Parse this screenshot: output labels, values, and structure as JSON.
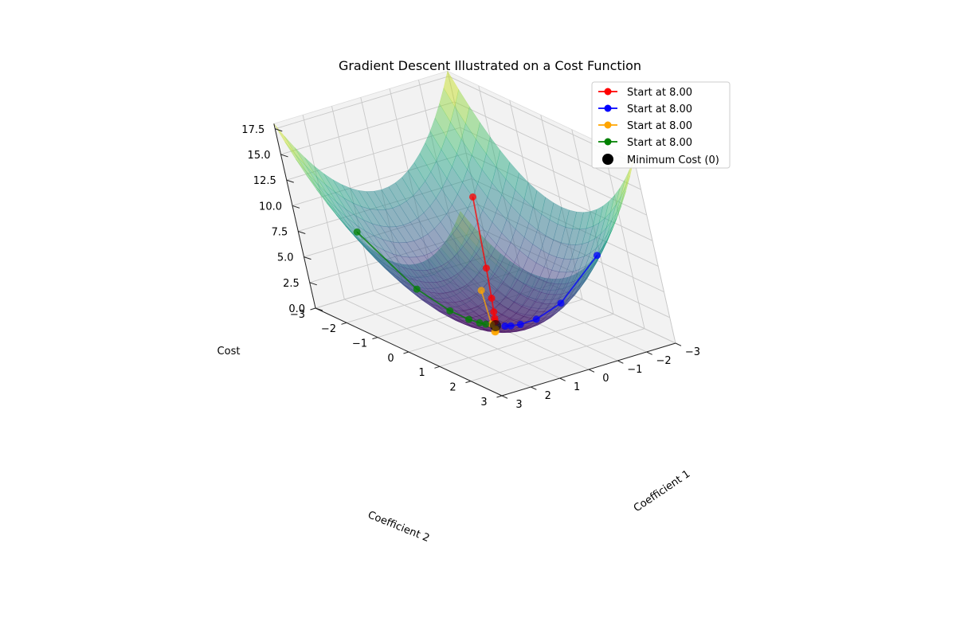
{
  "chart_data": {
    "type": "surface3d",
    "title": "Gradient Descent Illustrated on a Cost Function",
    "xlabel": "Coefficient 1",
    "ylabel": "Coefficient 2",
    "zlabel": "Cost",
    "xlim": [
      -3,
      3
    ],
    "ylim": [
      -3,
      3
    ],
    "zlim": [
      0,
      18
    ],
    "x_ticks": [
      "−3",
      "−2",
      "−1",
      "0",
      "1",
      "2",
      "3"
    ],
    "y_ticks": [
      "−3",
      "−2",
      "−1",
      "0",
      "1",
      "2",
      "3"
    ],
    "z_ticks": [
      "0.0",
      "2.5",
      "5.0",
      "7.5",
      "10.0",
      "12.5",
      "15.0",
      "17.5"
    ],
    "surface": {
      "function": "x^2 + y^2",
      "colormap": "viridis",
      "alpha": 0.5
    },
    "series": [
      {
        "name": "Start at 8.00",
        "color": "#ff0000",
        "points": [
          [
            -2,
            -2,
            8
          ],
          [
            -1.2,
            -1.2,
            2.88
          ],
          [
            -0.72,
            -0.72,
            1.04
          ],
          [
            -0.43,
            -0.43,
            0.37
          ],
          [
            -0.26,
            -0.26,
            0.13
          ],
          [
            -0.16,
            -0.16,
            0.05
          ]
        ]
      },
      {
        "name": "Start at 8.00",
        "color": "#0000ff",
        "points": [
          [
            -2,
            2,
            8
          ],
          [
            -1.2,
            1.2,
            2.88
          ],
          [
            -0.72,
            0.72,
            1.04
          ],
          [
            -0.43,
            0.43,
            0.37
          ],
          [
            -0.26,
            0.26,
            0.13
          ],
          [
            -0.16,
            0.16,
            0.05
          ]
        ]
      },
      {
        "name": "Start at 8.00",
        "color": "#ffa500",
        "points": [
          [
            2,
            2,
            8
          ],
          [
            1.2,
            1.2,
            2.88
          ],
          [
            0.72,
            0.72,
            1.04
          ],
          [
            0.43,
            0.43,
            0.37
          ],
          [
            0.26,
            0.26,
            0.13
          ],
          [
            0.16,
            0.16,
            0.05
          ]
        ]
      },
      {
        "name": "Start at 8.00",
        "color": "#008000",
        "points": [
          [
            2,
            -2,
            8
          ],
          [
            1.2,
            -1.2,
            2.88
          ],
          [
            0.72,
            -0.72,
            1.04
          ],
          [
            0.43,
            -0.43,
            0.37
          ],
          [
            0.26,
            -0.26,
            0.13
          ],
          [
            0.16,
            -0.16,
            0.05
          ]
        ]
      }
    ],
    "minimum": {
      "name": "Minimum Cost (0)",
      "point": [
        0,
        0,
        0
      ],
      "color": "#000000"
    },
    "legend_position": "top-right",
    "grid": true
  }
}
